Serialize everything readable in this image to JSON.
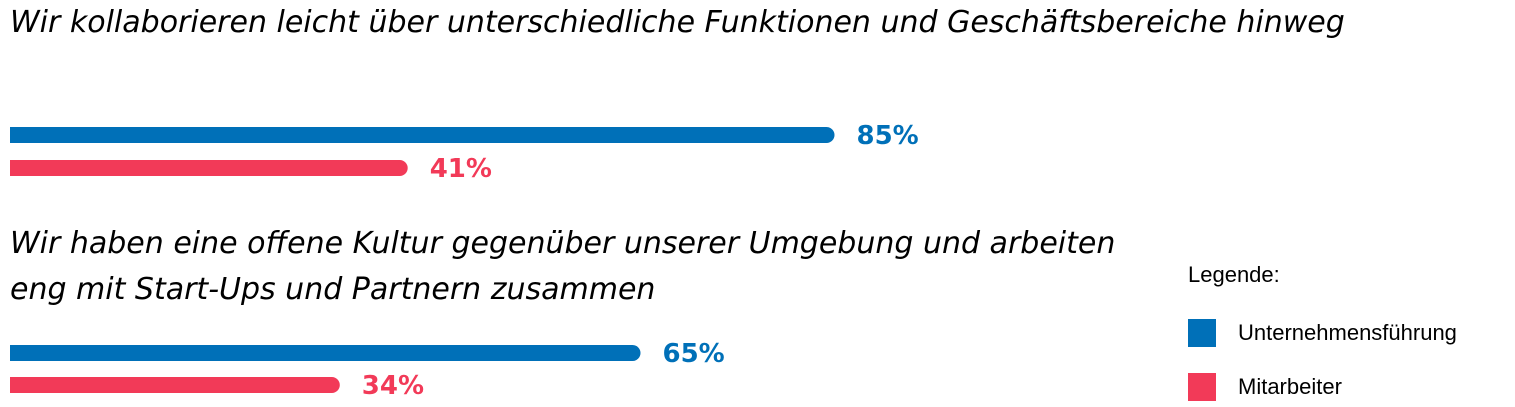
{
  "colors": {
    "unternehmensfuehrung": "#0070B8",
    "mitarbeiter": "#F23A58"
  },
  "chart_data": {
    "type": "bar",
    "orientation": "horizontal",
    "categories": [
      "Wir kollaborieren leicht über unterschiedliche Funktionen und Geschäftsbereiche hinweg",
      "Wir haben eine offene Kultur gegenüber unserer Umgebung und arbeiten eng mit Start-Ups und Partnern zusammen"
    ],
    "series": [
      {
        "name": "Unternehmensführung",
        "values": [
          85,
          65
        ],
        "labels": [
          "85%",
          "65%"
        ]
      },
      {
        "name": "Mitarbeiter",
        "values": [
          41,
          34
        ],
        "labels": [
          "41%",
          "34%"
        ]
      }
    ],
    "unit": "%",
    "xlim": [
      0,
      100
    ],
    "grid": false,
    "legend_position": "bottom-right"
  },
  "legend": {
    "title": "Legende:",
    "items": [
      "Unternehmensführung",
      "Mitarbeiter"
    ]
  }
}
